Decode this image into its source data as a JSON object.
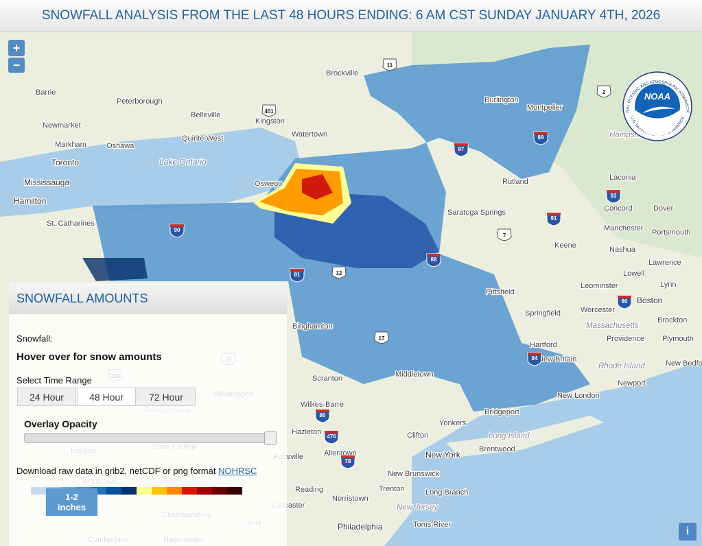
{
  "header": {
    "title": "SNOWFALL ANALYSIS FROM THE LAST 48 HOURS ENDING: 6 AM CST SUNDAY JANUARY 4TH, 2026"
  },
  "map": {
    "zoom_in": "+",
    "zoom_out": "−",
    "info": "i",
    "places": [
      "Brockville",
      "Barrie",
      "Peterborough",
      "Belleville",
      "Kingston",
      "Newmarket",
      "Quinte West",
      "Watertown",
      "Markham",
      "Oshawa",
      "Toronto",
      "Lake Ontario",
      "Mississauga",
      "Oswego",
      "Hamilton",
      "St. Catharines",
      "Rutland",
      "Saratoga Springs",
      "Burlington",
      "Montpelier",
      "Hampshire",
      "Laconia",
      "Concord",
      "Dover",
      "Manchester",
      "Portsmouth",
      "Keene",
      "Nashua",
      "Lawrence",
      "Lowell",
      "Lynn",
      "Leominster",
      "Boston",
      "Worcester",
      "Massachusetts",
      "Brockton",
      "Pittsfield",
      "Springfield",
      "Providence",
      "Plymouth",
      "Hartford",
      "New Britain",
      "Rhode Island",
      "New Bedford",
      "Newport",
      "Middletown",
      "Scranton",
      "Binghamton",
      "Williamsport",
      "Wilkes-Barre",
      "Hazleton",
      "New London",
      "Bridgeport",
      "Yonkers",
      "Long Island",
      "Clifton",
      "Brentwood",
      "New York",
      "Allentown",
      "Pottsville",
      "State College",
      "Indiana",
      "Johnstown",
      "New Brunswick",
      "Reading",
      "Trenton",
      "Long Branch",
      "Norristown",
      "Lancaster",
      "New Jersey",
      "Philadelphia",
      "Toms River",
      "York",
      "Chambersburg",
      "Cumberland",
      "Hagerstown",
      "Pennsylvania"
    ],
    "shields": [
      "11",
      "401",
      "2",
      "87",
      "89",
      "93",
      "90",
      "91",
      "7",
      "81",
      "12",
      "88",
      "17",
      "84",
      "80",
      "476",
      "78",
      "219",
      "15",
      "90"
    ],
    "logo": {
      "name": "NOAA",
      "agency": "NATIONAL OCEANIC AND ATMOSPHERIC ADMINISTRATION",
      "department": "U.S. DEPARTMENT OF COMMERCE"
    }
  },
  "panel": {
    "title": "SNOWFALL AMOUNTS",
    "snowfall_label": "Snowfall:",
    "hover_text": "Hover over for snow amounts",
    "time_range_label": "Select Time Range",
    "time_ranges": [
      "24 Hour",
      "48 Hour",
      "72 Hour"
    ],
    "selected_range": "48 Hour",
    "opacity_label": "Overlay Opacity",
    "download_text": "Download raw data in grib2, netCDF or png format",
    "download_link": "NOHRSC",
    "legend": {
      "colors": [
        "#c6dbef",
        "#9ecae1",
        "#6baed6",
        "#4292c6",
        "#2171b5",
        "#08519c",
        "#08306b",
        "#ffff96",
        "#ffc400",
        "#ff8700",
        "#db1400",
        "#9e0000",
        "#690000",
        "#360000"
      ],
      "tooltip": "1-2 inches"
    }
  }
}
